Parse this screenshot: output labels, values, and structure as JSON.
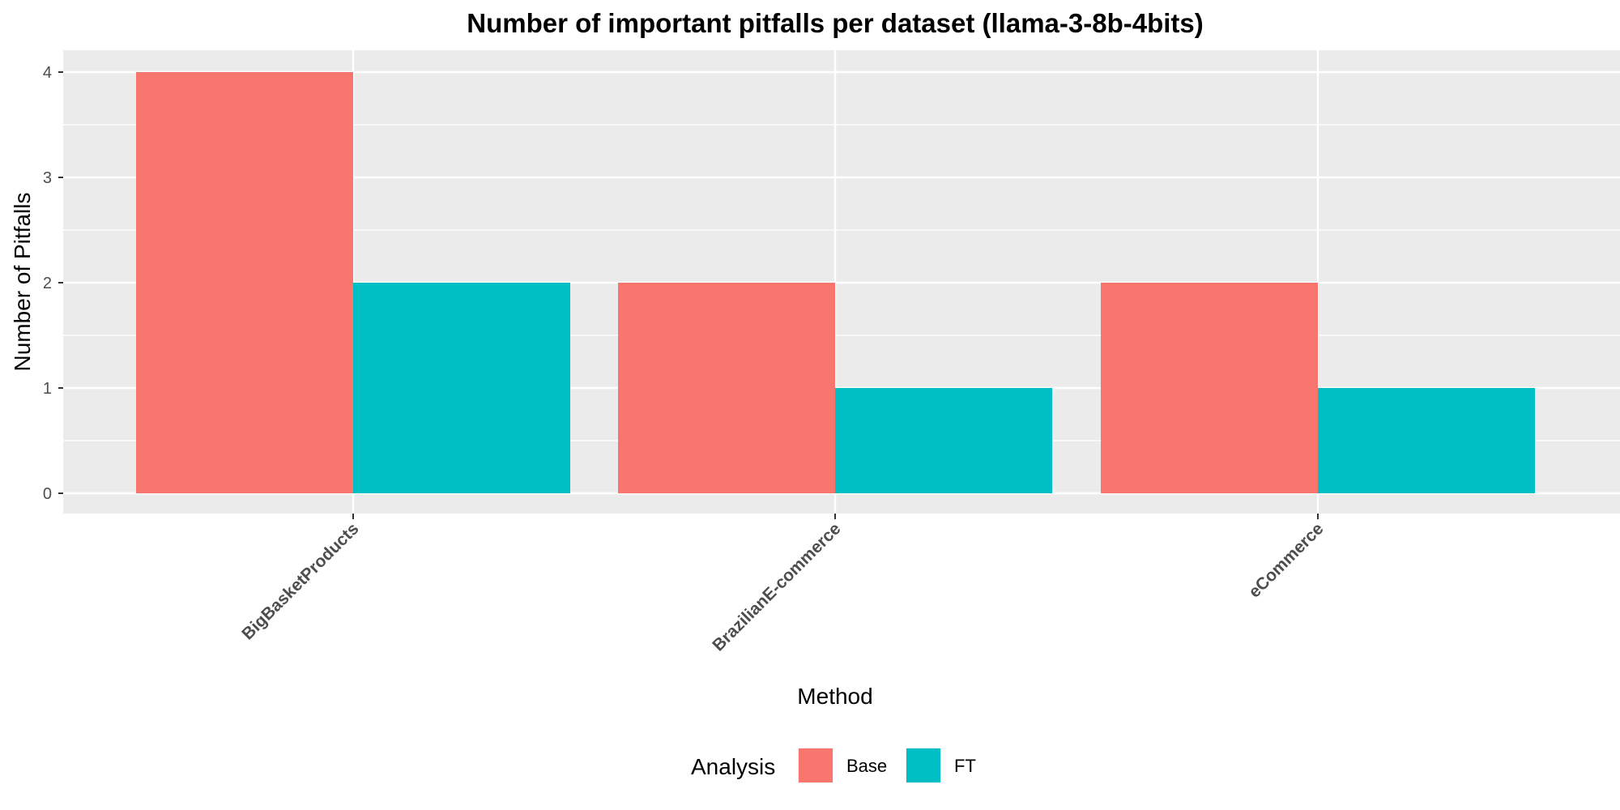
{
  "chart_data": {
    "type": "bar",
    "title": "Number of important pitfalls per dataset (llama-3-8b-4bits)",
    "xlabel": "Method",
    "ylabel": "Number of Pitfalls",
    "categories": [
      "BigBasketProducts",
      "BrazilianE-commerce",
      "eCommerce"
    ],
    "series": [
      {
        "name": "Base",
        "values": [
          4,
          2,
          2
        ],
        "color": "#F8766D"
      },
      {
        "name": "FT",
        "values": [
          2,
          1,
          1
        ],
        "color": "#00BFC4"
      }
    ],
    "ylim": [
      -0.2,
      4.2
    ],
    "yticks": [
      0,
      1,
      2,
      3,
      4
    ],
    "grid": true,
    "panel_background": "#EBEBEB",
    "legend": {
      "title": "Analysis",
      "position": "bottom"
    }
  }
}
